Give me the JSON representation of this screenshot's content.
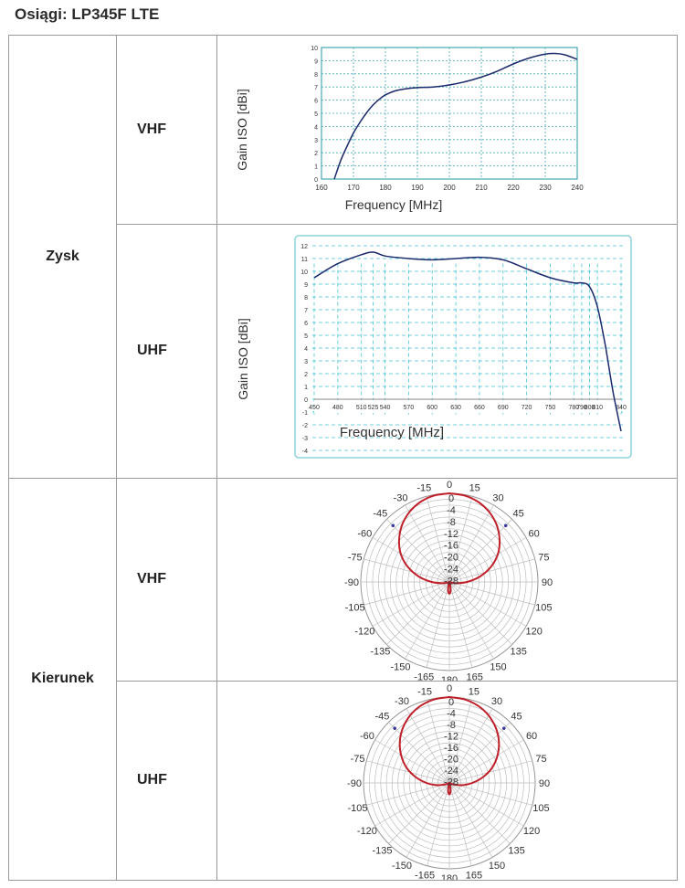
{
  "page": {
    "title": "Osiągi: LP345F LTE"
  },
  "sections": {
    "gain": {
      "label": "Zysk",
      "vhf_label": "VHF",
      "uhf_label": "UHF"
    },
    "direction": {
      "label": "Kierunek",
      "vhf_label": "VHF",
      "uhf_label": "UHF"
    }
  },
  "chart_data": [
    {
      "id": "gain-vhf",
      "type": "line",
      "xlabel": "Frequency [MHz]",
      "ylabel": "Gain ISO [dBi]",
      "xlim": [
        160,
        240
      ],
      "ylim": [
        0,
        10
      ],
      "x_ticks": [
        160,
        170,
        180,
        190,
        200,
        210,
        220,
        230,
        240
      ],
      "y_ticks": [
        0,
        1,
        2,
        3,
        4,
        5,
        6,
        7,
        8,
        9,
        10
      ],
      "grid": true,
      "colors": {
        "line": "#1a2a6c",
        "grid": "#44a9b4",
        "frame": "#44a9b4"
      },
      "series": [
        {
          "x": [
            164,
            166,
            168,
            170,
            172,
            174,
            176,
            178,
            180,
            183,
            186,
            190,
            195,
            200,
            205,
            210,
            215,
            220,
            225,
            230,
            233,
            236,
            240
          ],
          "y": [
            0,
            1.4,
            2.5,
            3.5,
            4.3,
            5.0,
            5.6,
            6.05,
            6.4,
            6.7,
            6.85,
            6.95,
            7.0,
            7.15,
            7.4,
            7.75,
            8.2,
            8.75,
            9.2,
            9.5,
            9.55,
            9.45,
            9.1
          ]
        }
      ]
    },
    {
      "id": "gain-uhf",
      "type": "line",
      "xlabel": "Frequency [MHz]",
      "ylabel": "Gain ISO [dBi]",
      "xlim": [
        450,
        840
      ],
      "ylim": [
        -4,
        12
      ],
      "x_ticks": [
        450,
        480,
        510,
        525,
        540,
        570,
        600,
        630,
        660,
        690,
        720,
        750,
        780,
        790,
        800,
        810,
        840
      ],
      "y_ticks": [
        12,
        11,
        10,
        9,
        8,
        7,
        6,
        5,
        4,
        3,
        2,
        1,
        0,
        -1,
        -2,
        -3,
        -4
      ],
      "grid": true,
      "colors": {
        "line": "#1a2a6c",
        "grid": "#44c4d4",
        "frame": "#8fd3dc"
      },
      "series": [
        {
          "x": [
            450,
            480,
            510,
            525,
            540,
            570,
            600,
            630,
            660,
            690,
            720,
            750,
            780,
            790,
            800,
            810,
            820,
            830,
            840
          ],
          "y": [
            9.5,
            10.6,
            11.3,
            11.5,
            11.2,
            11.0,
            10.9,
            11.0,
            11.1,
            10.9,
            10.2,
            9.5,
            9.1,
            9.1,
            8.8,
            7.2,
            4.2,
            0.5,
            -2.5
          ]
        }
      ]
    },
    {
      "id": "pattern-vhf",
      "type": "polar",
      "angle_labels": [
        "0",
        "15",
        "30",
        "45",
        "60",
        "75",
        "90",
        "105",
        "120",
        "135",
        "150",
        "165",
        "180",
        "-165",
        "-150",
        "-135",
        "-120",
        "-105",
        "-90",
        "-75",
        "-60",
        "-45",
        "-30",
        "-15"
      ],
      "radial_labels": [
        "0",
        "-4",
        "-8",
        "-12",
        "-16",
        "-20",
        "-24",
        "-28"
      ],
      "rlim": [
        -30,
        0
      ],
      "colors": {
        "pattern": "#c0202a",
        "grid": "#bdbdbd",
        "marker": "#3a3aa0"
      },
      "series": [
        {
          "angle": [
            0,
            10,
            20,
            30,
            40,
            50,
            60,
            70,
            80,
            90,
            100,
            110,
            120,
            130,
            140,
            150,
            160,
            170,
            175,
            180
          ],
          "gain": [
            0,
            -0.3,
            -1.2,
            -2.8,
            -5,
            -7.8,
            -11,
            -15,
            -19.5,
            -24,
            -27.5,
            -29.5,
            -30,
            -30,
            -30,
            -30,
            -29.5,
            -27.5,
            -26.5,
            -26
          ]
        }
      ]
    },
    {
      "id": "pattern-uhf",
      "type": "polar",
      "angle_labels": [
        "0",
        "15",
        "30",
        "45",
        "60",
        "75",
        "90",
        "105",
        "120",
        "135",
        "150",
        "165",
        "180",
        "-165",
        "-150",
        "-135",
        "-120",
        "-105",
        "-90",
        "-75",
        "-60",
        "-45",
        "-30",
        "-15"
      ],
      "radial_labels": [
        "0",
        "-4",
        "-8",
        "-12",
        "-16",
        "-20",
        "-24",
        "-28"
      ],
      "rlim": [
        -30,
        0
      ],
      "colors": {
        "pattern": "#c0202a",
        "grid": "#bdbdbd",
        "marker": "#3a3aa0"
      },
      "series": [
        {
          "angle": [
            0,
            10,
            20,
            30,
            40,
            50,
            60,
            70,
            80,
            90,
            100,
            110,
            120,
            130,
            140,
            150,
            160,
            170,
            175,
            180
          ],
          "gain": [
            0,
            -0.3,
            -1.2,
            -2.7,
            -4.8,
            -7.4,
            -10.5,
            -14,
            -18,
            -22,
            -25.5,
            -28.5,
            -30,
            -30,
            -30,
            -30,
            -29.5,
            -27.5,
            -26.5,
            -26
          ]
        }
      ]
    }
  ]
}
